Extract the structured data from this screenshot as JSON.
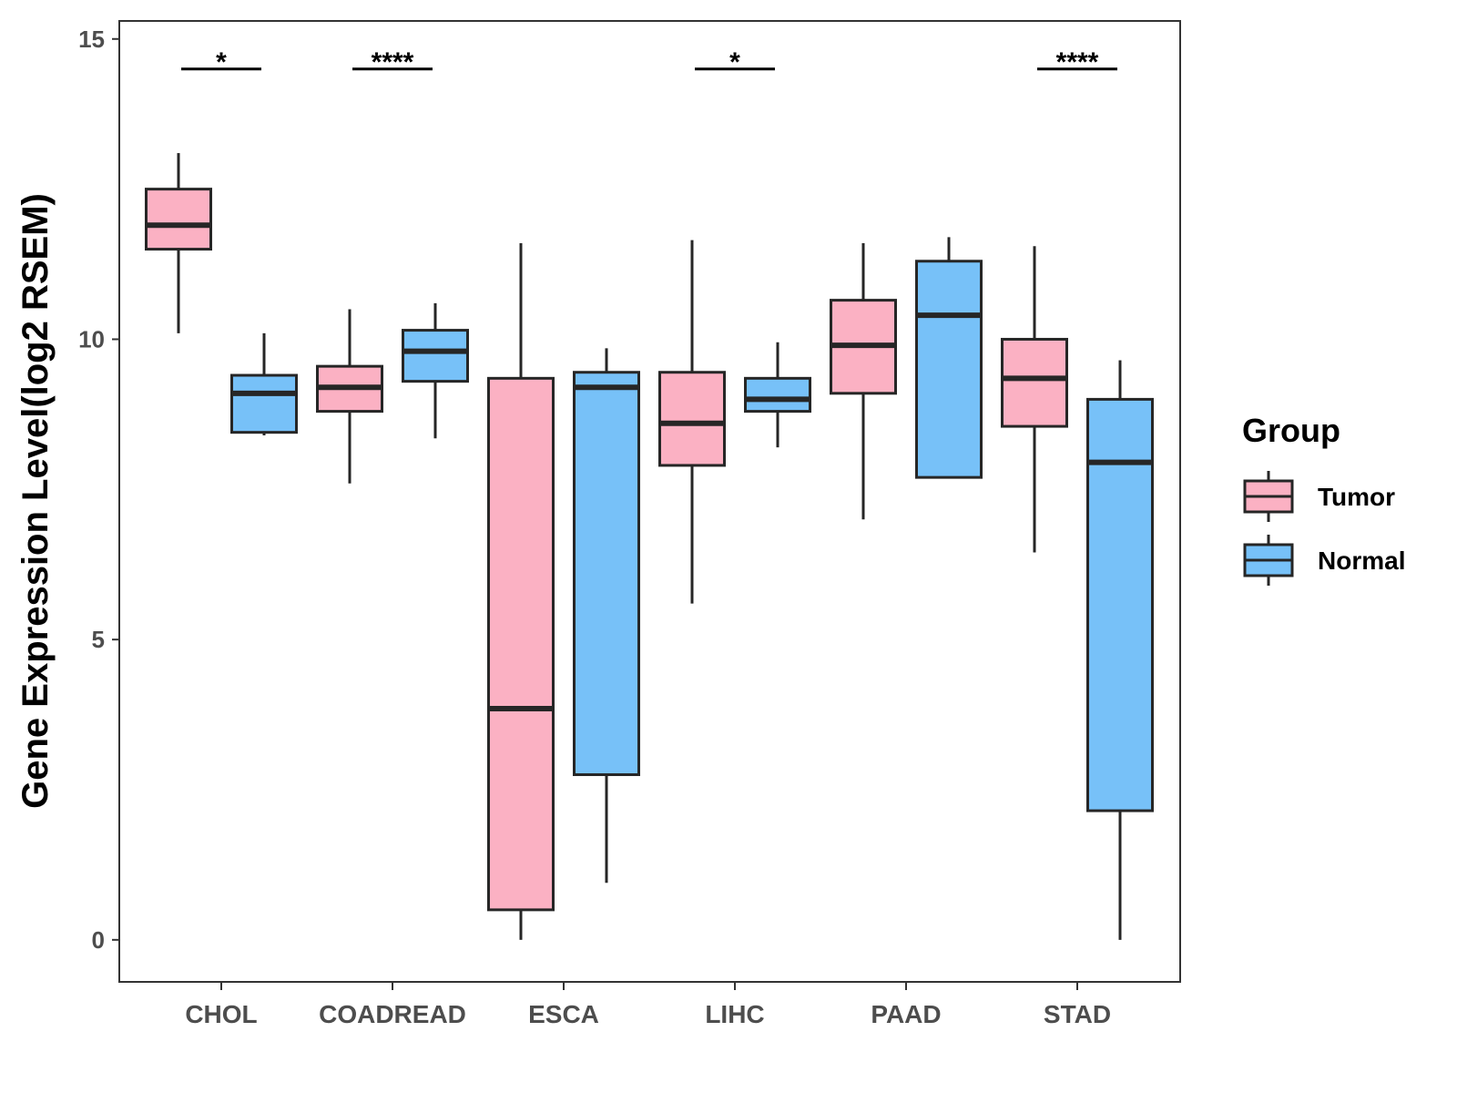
{
  "chart_data": {
    "type": "boxplot",
    "title": "",
    "xlabel": "",
    "ylabel": "Gene Expression Level(log2 RSEM)",
    "ylim": [
      -0.7,
      15.3
    ],
    "yticks": [
      0,
      5,
      10,
      15
    ],
    "categories": [
      "CHOL",
      "COADREAD",
      "ESCA",
      "LIHC",
      "PAAD",
      "STAD"
    ],
    "legend": {
      "title": "Group",
      "position": "right"
    },
    "series": [
      {
        "name": "Tumor",
        "color": "#FBB1C3",
        "boxes": [
          {
            "min": 10.1,
            "q1": 11.5,
            "median": 11.9,
            "q3": 12.5,
            "max": 13.1
          },
          {
            "min": 7.6,
            "q1": 8.8,
            "median": 9.2,
            "q3": 9.55,
            "max": 10.5
          },
          {
            "min": 0.0,
            "q1": 0.5,
            "median": 3.85,
            "q3": 9.35,
            "max": 11.6
          },
          {
            "min": 5.6,
            "q1": 7.9,
            "median": 8.6,
            "q3": 9.45,
            "max": 11.65
          },
          {
            "min": 7.0,
            "q1": 9.1,
            "median": 9.9,
            "q3": 10.65,
            "max": 11.6
          },
          {
            "min": 6.45,
            "q1": 8.55,
            "median": 9.35,
            "q3": 10.0,
            "max": 11.55
          }
        ]
      },
      {
        "name": "Normal",
        "color": "#77C1F8",
        "boxes": [
          {
            "min": 8.4,
            "q1": 8.45,
            "median": 9.1,
            "q3": 9.4,
            "max": 10.1
          },
          {
            "min": 8.35,
            "q1": 9.3,
            "median": 9.8,
            "q3": 10.15,
            "max": 10.6
          },
          {
            "min": 0.95,
            "q1": 2.75,
            "median": 9.2,
            "q3": 9.45,
            "max": 9.85
          },
          {
            "min": 8.2,
            "q1": 8.8,
            "median": 9.0,
            "q3": 9.35,
            "max": 9.95
          },
          {
            "min": 7.7,
            "q1": 7.7,
            "median": 10.4,
            "q3": 11.3,
            "max": 11.7
          },
          {
            "min": 0.0,
            "q1": 2.15,
            "median": 7.95,
            "q3": 9.0,
            "max": 9.65
          }
        ]
      }
    ],
    "significance": [
      {
        "category": "CHOL",
        "label": "*"
      },
      {
        "category": "COADREAD",
        "label": "****"
      },
      {
        "category": "LIHC",
        "label": "*"
      },
      {
        "category": "STAD",
        "label": "****"
      }
    ],
    "significance_y": 14.5
  }
}
